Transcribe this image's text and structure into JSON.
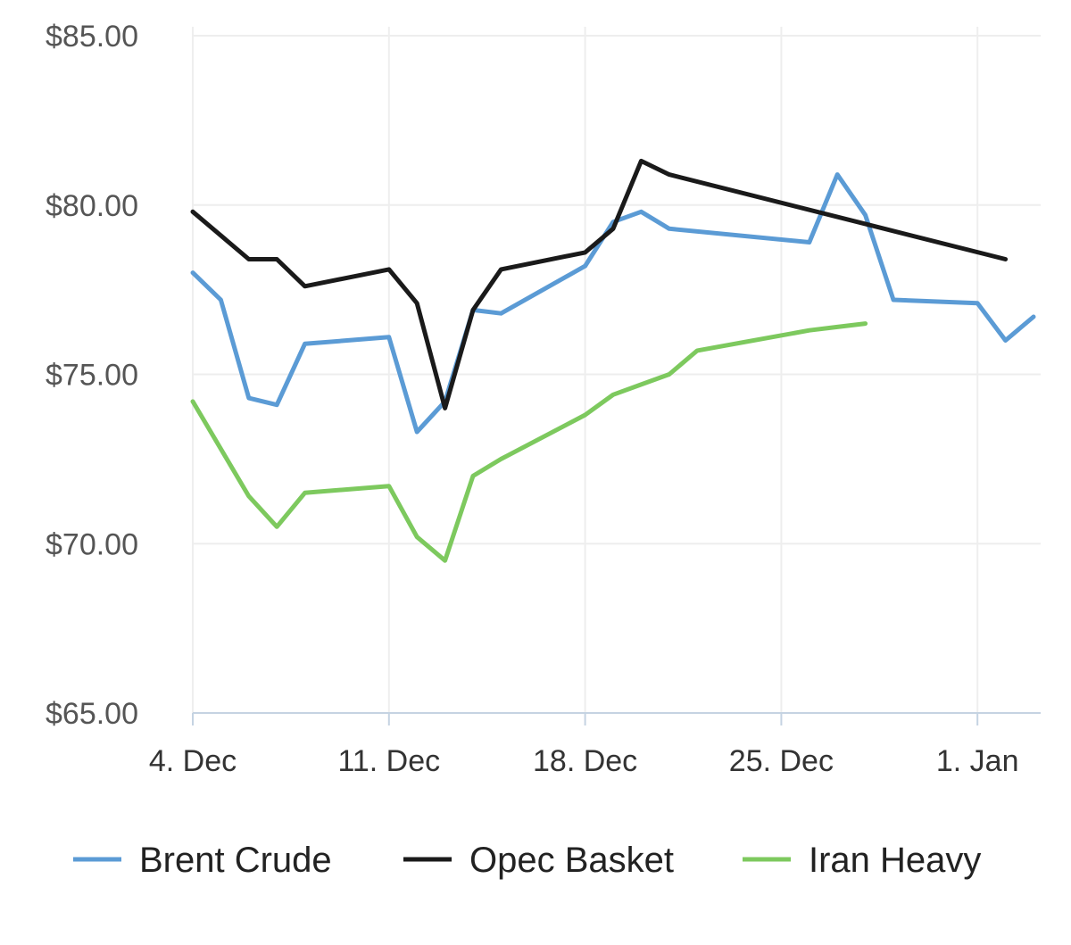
{
  "chart_data": {
    "type": "line",
    "title": "",
    "xlabel": "",
    "ylabel": "",
    "ylim": [
      65,
      85
    ],
    "yticks": [
      85,
      80,
      75,
      70,
      65
    ],
    "ytick_labels": [
      "$85.00",
      "$80.00",
      "$75.00",
      "$70.00",
      "$65.00"
    ],
    "x_range": [
      "2023-12-04",
      "2024-01-03"
    ],
    "xticks": [
      "2023-12-04",
      "2023-12-11",
      "2023-12-18",
      "2023-12-25",
      "2024-01-01"
    ],
    "xtick_labels": [
      "4. Dec",
      "11. Dec",
      "18. Dec",
      "25. Dec",
      "1. Jan"
    ],
    "grid": true,
    "legend_position": "bottom",
    "series": [
      {
        "name": "Brent Crude",
        "color": "#5b9bd5",
        "points": [
          [
            "2023-12-04",
            78.0
          ],
          [
            "2023-12-05",
            77.2
          ],
          [
            "2023-12-06",
            74.3
          ],
          [
            "2023-12-07",
            74.1
          ],
          [
            "2023-12-08",
            75.9
          ],
          [
            "2023-12-11",
            76.1
          ],
          [
            "2023-12-12",
            73.3
          ],
          [
            "2023-12-13",
            74.2
          ],
          [
            "2023-12-14",
            76.9
          ],
          [
            "2023-12-15",
            76.8
          ],
          [
            "2023-12-18",
            78.2
          ],
          [
            "2023-12-19",
            79.5
          ],
          [
            "2023-12-20",
            79.8
          ],
          [
            "2023-12-21",
            79.3
          ],
          [
            "2023-12-26",
            78.9
          ],
          [
            "2023-12-27",
            80.9
          ],
          [
            "2023-12-28",
            79.7
          ],
          [
            "2023-12-29",
            77.2
          ],
          [
            "2024-01-01",
            77.1
          ],
          [
            "2024-01-02",
            76.0
          ],
          [
            "2024-01-03",
            76.7
          ]
        ]
      },
      {
        "name": "Opec Basket",
        "color": "#1a1a1a",
        "points": [
          [
            "2023-12-04",
            79.8
          ],
          [
            "2023-12-06",
            78.4
          ],
          [
            "2023-12-07",
            78.4
          ],
          [
            "2023-12-08",
            77.6
          ],
          [
            "2023-12-11",
            78.1
          ],
          [
            "2023-12-12",
            77.1
          ],
          [
            "2023-12-13",
            74.0
          ],
          [
            "2023-12-14",
            76.9
          ],
          [
            "2023-12-15",
            78.1
          ],
          [
            "2023-12-18",
            78.6
          ],
          [
            "2023-12-19",
            79.3
          ],
          [
            "2023-12-20",
            81.3
          ],
          [
            "2023-12-21",
            80.9
          ],
          [
            "2024-01-02",
            78.4
          ]
        ]
      },
      {
        "name": "Iran Heavy",
        "color": "#7dc95e",
        "points": [
          [
            "2023-12-04",
            74.2
          ],
          [
            "2023-12-05",
            72.8
          ],
          [
            "2023-12-06",
            71.4
          ],
          [
            "2023-12-07",
            70.5
          ],
          [
            "2023-12-08",
            71.5
          ],
          [
            "2023-12-11",
            71.7
          ],
          [
            "2023-12-12",
            70.2
          ],
          [
            "2023-12-13",
            69.5
          ],
          [
            "2023-12-14",
            72.0
          ],
          [
            "2023-12-15",
            72.5
          ],
          [
            "2023-12-18",
            73.8
          ],
          [
            "2023-12-19",
            74.4
          ],
          [
            "2023-12-20",
            74.7
          ],
          [
            "2023-12-21",
            75.0
          ],
          [
            "2023-12-22",
            75.7
          ],
          [
            "2023-12-26",
            76.3
          ],
          [
            "2023-12-27",
            76.4
          ],
          [
            "2023-12-28",
            76.5
          ]
        ]
      }
    ]
  }
}
